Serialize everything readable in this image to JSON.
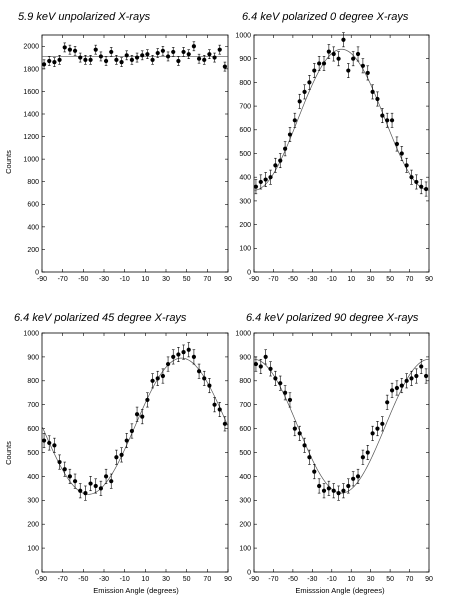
{
  "chart_data": [
    {
      "type": "scatter",
      "title": "5.9 keV unpolarized X-rays",
      "xlabel": "",
      "ylabel": "Counts",
      "xlim": [
        -90,
        90
      ],
      "ylim": [
        0,
        2100
      ],
      "xticks": [
        "-90",
        "-70",
        "-50",
        "-30",
        "-10",
        "10",
        "30",
        "50",
        "70",
        "90"
      ],
      "yticks": [
        "0",
        "200",
        "400",
        "600",
        "800",
        "1000",
        "1200",
        "1400",
        "1600",
        "1800",
        "2000"
      ],
      "series": [
        {
          "x": [
            -88,
            -83,
            -78,
            -73,
            -68,
            -63,
            -58,
            -53,
            -48,
            -43,
            -38,
            -33,
            -28,
            -23,
            -18,
            -13,
            -8,
            -3,
            2,
            7,
            12,
            17,
            22,
            27,
            32,
            37,
            42,
            47,
            52,
            57,
            62,
            67,
            72,
            77,
            82,
            87
          ],
          "y": [
            1840,
            1870,
            1860,
            1880,
            1990,
            1970,
            1960,
            1900,
            1880,
            1880,
            1970,
            1910,
            1870,
            1950,
            1880,
            1860,
            1920,
            1880,
            1900,
            1920,
            1930,
            1880,
            1940,
            1960,
            1910,
            1950,
            1870,
            1950,
            1930,
            2000,
            1890,
            1880,
            1930,
            1900,
            1970,
            1820
          ],
          "yerr": 40
        }
      ],
      "fit": {
        "type": "constant",
        "value": 1910
      }
    },
    {
      "type": "scatter",
      "title": "6.4 keV polarized 0 degree X-rays",
      "xlabel": "",
      "ylabel": "",
      "xlim": [
        -90,
        90
      ],
      "ylim": [
        0,
        1000
      ],
      "xticks": [
        "-90",
        "-70",
        "-50",
        "-30",
        "-10",
        "10",
        "30",
        "50",
        "70",
        "90"
      ],
      "yticks": [
        "0",
        "100",
        "200",
        "300",
        "400",
        "500",
        "600",
        "700",
        "800",
        "900",
        "1000"
      ],
      "series": [
        {
          "x": [
            -88,
            -83,
            -78,
            -73,
            -68,
            -63,
            -58,
            -53,
            -48,
            -43,
            -38,
            -33,
            -28,
            -23,
            -18,
            -13,
            -8,
            -3,
            2,
            7,
            12,
            17,
            22,
            27,
            32,
            37,
            42,
            47,
            52,
            57,
            62,
            67,
            72,
            77,
            82,
            87
          ],
          "y": [
            360,
            380,
            390,
            400,
            450,
            470,
            520,
            580,
            640,
            720,
            760,
            800,
            850,
            880,
            880,
            930,
            920,
            900,
            980,
            850,
            900,
            920,
            870,
            840,
            760,
            730,
            660,
            640,
            640,
            540,
            500,
            450,
            400,
            380,
            360,
            350
          ],
          "yerr": 30
        }
      ],
      "fit": {
        "type": "cos2",
        "offset": 345,
        "amplitude": 595,
        "phase": 0
      }
    },
    {
      "type": "scatter",
      "title": "6.4 keV polarized 45 degree X-rays",
      "xlabel": "Emission Angle (degrees)",
      "ylabel": "Counts",
      "xlim": [
        -90,
        90
      ],
      "ylim": [
        0,
        1000
      ],
      "xticks": [
        "-90",
        "-70",
        "-50",
        "-30",
        "-10",
        "10",
        "30",
        "50",
        "70",
        "90"
      ],
      "yticks": [
        "0",
        "100",
        "200",
        "300",
        "400",
        "500",
        "600",
        "700",
        "800",
        "900",
        "1000"
      ],
      "series": [
        {
          "x": [
            -88,
            -83,
            -78,
            -73,
            -68,
            -63,
            -58,
            -53,
            -48,
            -43,
            -38,
            -33,
            -28,
            -23,
            -18,
            -13,
            -8,
            -3,
            2,
            7,
            12,
            17,
            22,
            27,
            32,
            37,
            42,
            47,
            52,
            57,
            62,
            67,
            72,
            77,
            82,
            87
          ],
          "y": [
            550,
            540,
            530,
            460,
            430,
            400,
            380,
            340,
            330,
            370,
            360,
            350,
            400,
            380,
            480,
            490,
            550,
            590,
            660,
            650,
            720,
            800,
            810,
            820,
            870,
            900,
            910,
            920,
            930,
            900,
            840,
            810,
            780,
            700,
            680,
            620
          ],
          "yerr": 30
        }
      ],
      "fit": {
        "type": "cos2",
        "offset": 325,
        "amplitude": 570,
        "phase": 45
      }
    },
    {
      "type": "scatter",
      "title": "6.4 keV polarized 90 degree X-rays",
      "xlabel": "Emisssion Angle (degrees)",
      "ylabel": "",
      "xlim": [
        -90,
        90
      ],
      "ylim": [
        0,
        1000
      ],
      "xticks": [
        "-90",
        "-70",
        "-50",
        "-30",
        "-10",
        "10",
        "30",
        "50",
        "70",
        "90"
      ],
      "yticks": [
        "0",
        "100",
        "200",
        "300",
        "400",
        "500",
        "600",
        "700",
        "800",
        "900",
        "1000"
      ],
      "series": [
        {
          "x": [
            -88,
            -83,
            -78,
            -73,
            -68,
            -63,
            -58,
            -53,
            -48,
            -43,
            -38,
            -33,
            -28,
            -23,
            -18,
            -13,
            -8,
            -3,
            2,
            7,
            12,
            17,
            22,
            27,
            32,
            37,
            42,
            47,
            52,
            57,
            62,
            67,
            72,
            77,
            82,
            87
          ],
          "y": [
            870,
            860,
            900,
            850,
            810,
            790,
            750,
            720,
            600,
            580,
            530,
            480,
            420,
            360,
            340,
            350,
            340,
            330,
            340,
            360,
            390,
            400,
            480,
            500,
            580,
            600,
            620,
            710,
            760,
            770,
            780,
            800,
            810,
            820,
            860,
            820
          ],
          "yerr": 30
        }
      ],
      "fit": {
        "type": "cos2",
        "offset": 330,
        "amplitude": 560,
        "phase": 90
      }
    }
  ]
}
